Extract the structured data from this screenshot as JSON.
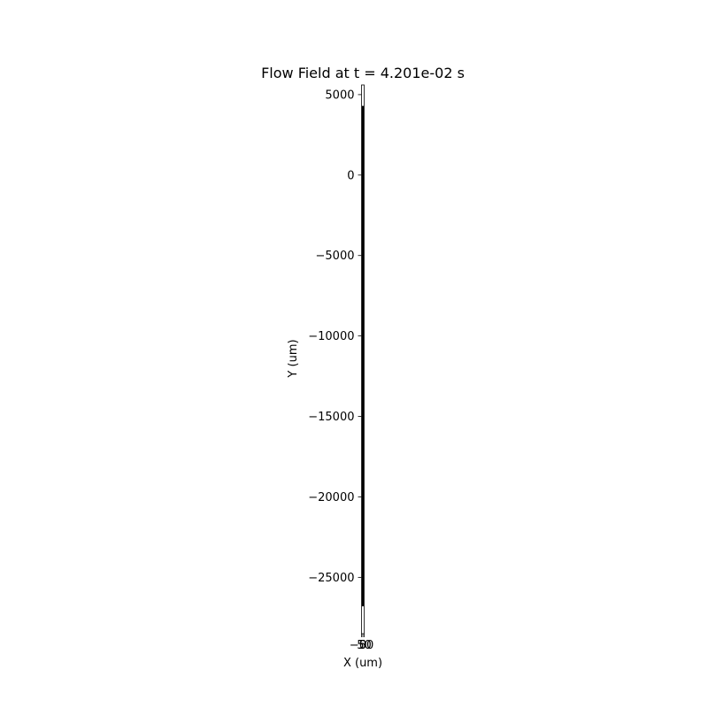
{
  "chart_data": {
    "type": "line",
    "title": "Flow Field at t = 4.201e-02 s",
    "xlabel": "X (um)",
    "ylabel": "Y (um)",
    "xlim": [
      -50,
      50
    ],
    "ylim": [
      -28500,
      5600
    ],
    "x_ticks": [
      -50,
      0,
      50
    ],
    "x_tick_labels": [
      "−50",
      "0",
      "50"
    ],
    "y_ticks": [
      5000,
      0,
      -5000,
      -10000,
      -15000,
      -20000,
      -25000
    ],
    "y_tick_labels": [
      "5000",
      "0",
      "−5000",
      "−10000",
      "−15000",
      "−20000",
      "−25000"
    ],
    "grid": false,
    "legend": false,
    "series": [
      {
        "color": "#000000",
        "x": [
          0,
          0
        ],
        "y": [
          4300,
          -26800
        ]
      }
    ],
    "channel_outline": {
      "x": [
        -50,
        50
      ],
      "y": [
        -28500,
        5600
      ]
    }
  }
}
